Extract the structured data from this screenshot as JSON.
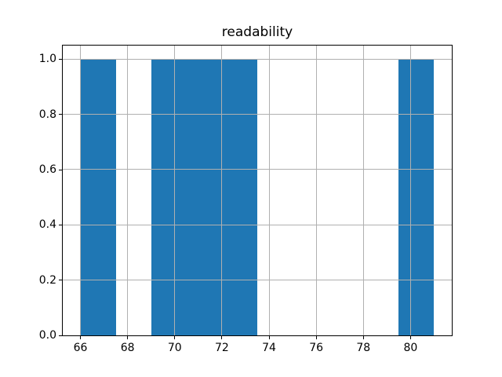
{
  "figure": {
    "background": "#ffffff"
  },
  "chart_data": {
    "type": "bar",
    "subtype": "histogram",
    "title": "readability",
    "bin_edges": [
      66,
      67.5,
      69,
      70.5,
      72,
      73.5,
      75,
      76.5,
      78,
      79.5,
      81
    ],
    "counts": [
      1,
      0,
      1,
      1,
      1,
      0,
      0,
      0,
      0,
      1
    ],
    "xlim": [
      65.25,
      81.75
    ],
    "ylim": [
      0,
      1.05
    ],
    "xticks": [
      66,
      68,
      70,
      72,
      74,
      76,
      78,
      80
    ],
    "xtick_labels": [
      "66",
      "68",
      "70",
      "72",
      "74",
      "76",
      "78",
      "80"
    ],
    "yticks": [
      0.0,
      0.2,
      0.4,
      0.6,
      0.8,
      1.0
    ],
    "ytick_labels": [
      "0.0",
      "0.2",
      "0.4",
      "0.6",
      "0.8",
      "1.0"
    ],
    "xlabel": "",
    "ylabel": "",
    "grid": true,
    "grid_above_bars": true,
    "legend": false,
    "bar_color": "#1f77b4",
    "grid_color": "#b0b0b0",
    "spine_color": "#000000",
    "text_color": "#000000"
  }
}
